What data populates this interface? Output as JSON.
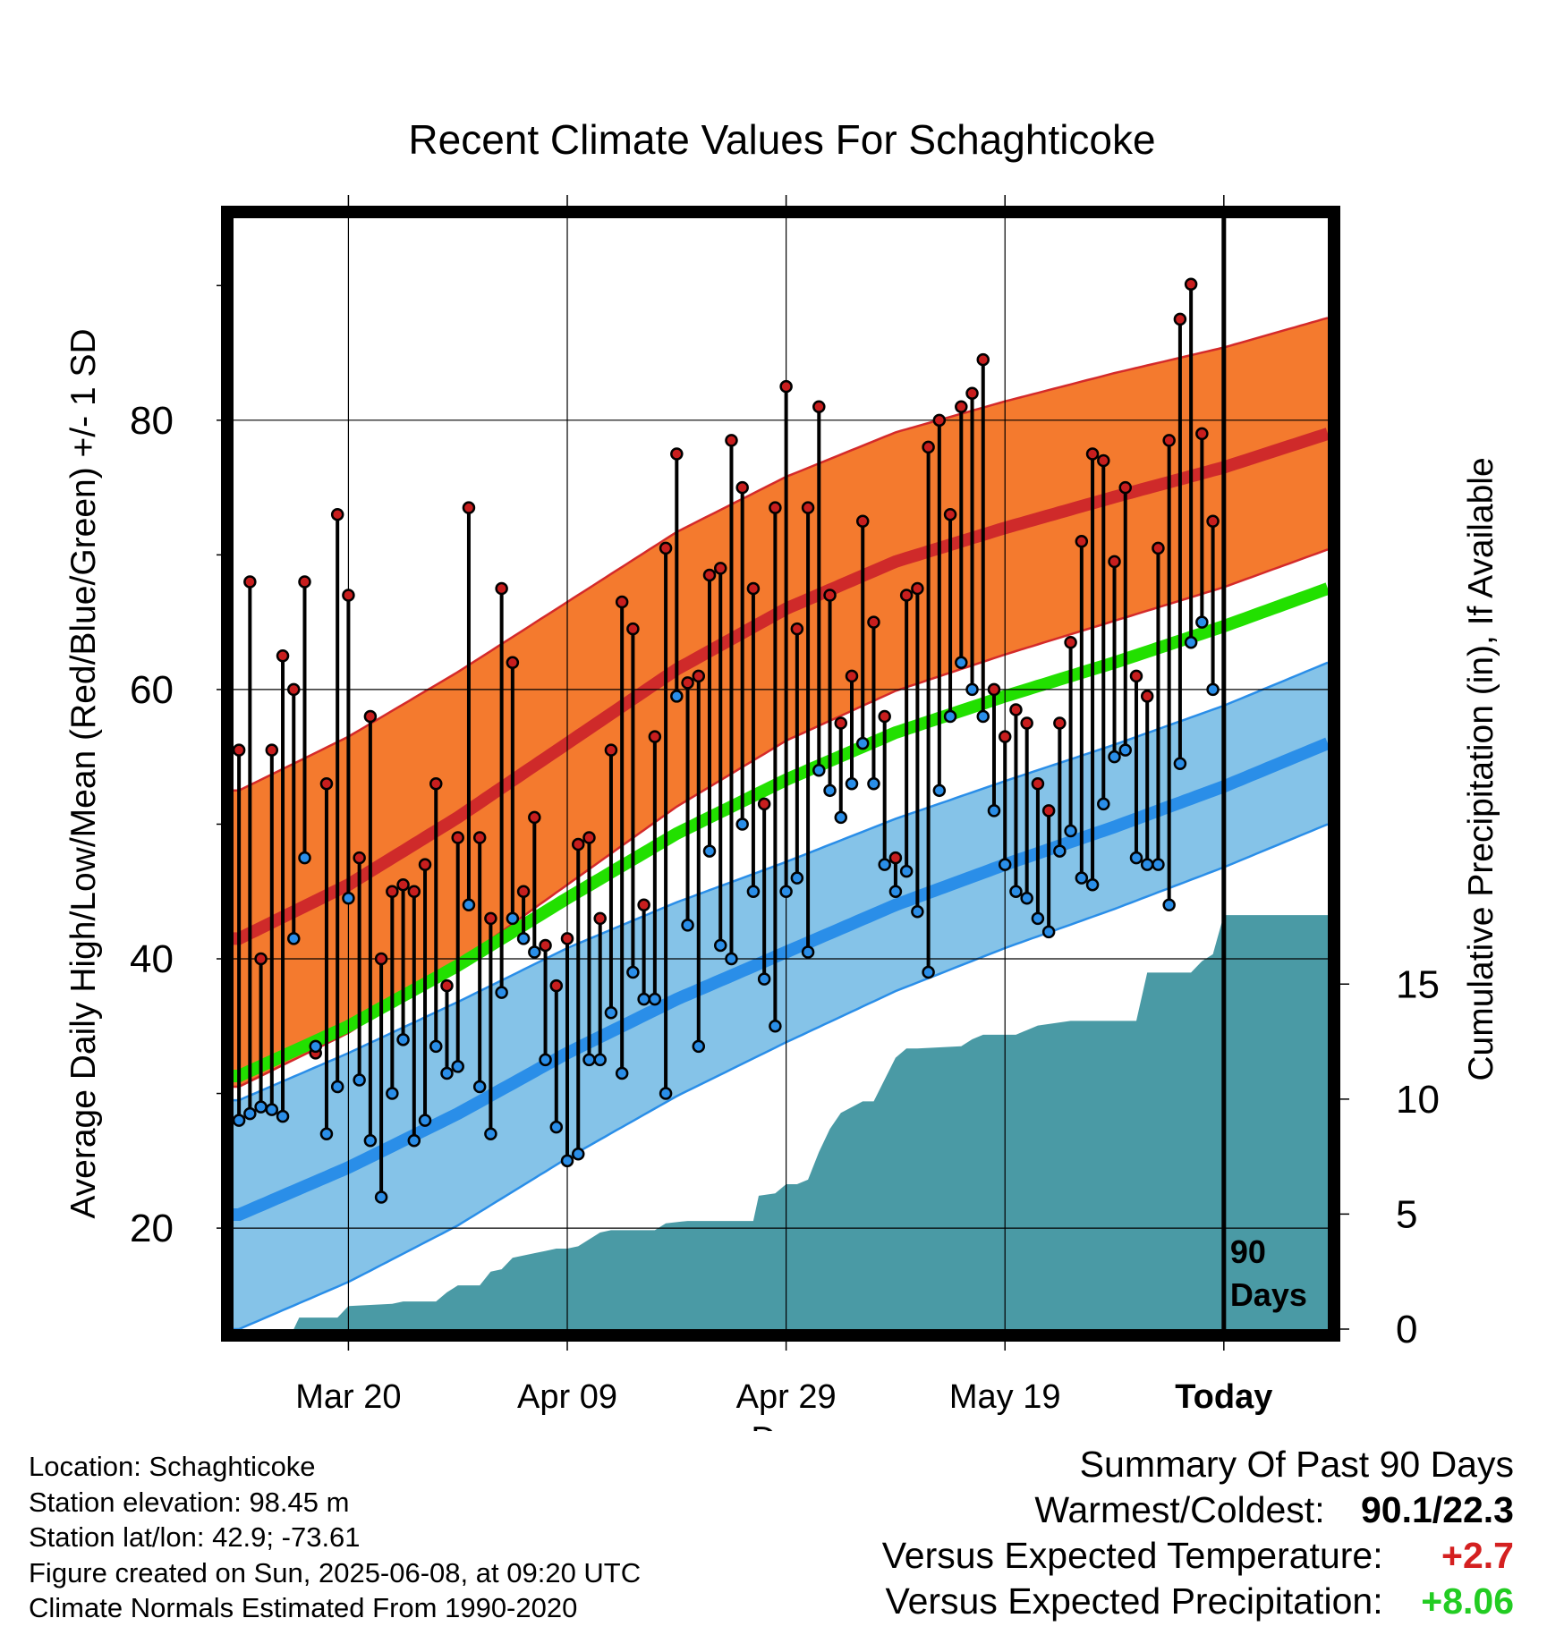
{
  "chart_data": {
    "type": "line",
    "title": "Recent Climate Values For Schaghticoke",
    "xlabel": "Day",
    "ylabel_left": "Average Daily High/Low/Mean (Red/Blue/Green) +/- 1 SD",
    "ylabel_right": "Cumulative Precipitation (in), If Available",
    "x_tick_labels": [
      "Mar 20",
      "Apr 09",
      "Apr 29",
      "May 19",
      "Today"
    ],
    "x_tick_days": [
      10,
      30,
      50,
      70,
      90
    ],
    "xlim": [
      -0.5,
      99.5
    ],
    "ylim_left": [
      12.5,
      95
    ],
    "yticks_left": [
      20,
      40,
      60,
      80
    ],
    "ylim_right": [
      0,
      48.3
    ],
    "yticks_right": [
      0,
      5,
      10,
      15
    ],
    "today_marker": {
      "day": 90,
      "label_line1": "90",
      "label_line2": "Days"
    },
    "normals": {
      "days": [
        0,
        10,
        20,
        30,
        40,
        50,
        60,
        70,
        80,
        90,
        99.5
      ],
      "high_mean": [
        41.5,
        45.5,
        50.5,
        56,
        61.5,
        66,
        69.5,
        72,
        74.3,
        76.5,
        79
      ],
      "high_sd": [
        11,
        11,
        10.8,
        10.5,
        10.2,
        9.8,
        9.6,
        9.4,
        9.2,
        8.9,
        8.6
      ],
      "low_mean": [
        21,
        24.5,
        28.5,
        33,
        37,
        40.5,
        44,
        47,
        49.8,
        52.8,
        56
      ],
      "low_sd": [
        8.5,
        8.5,
        8.3,
        7.8,
        7.2,
        6.7,
        6.4,
        6.2,
        6.1,
        6.0,
        6.0
      ],
      "mean": [
        31.3,
        35,
        39.5,
        44.5,
        49.3,
        53.3,
        56.8,
        59.5,
        62,
        64.7,
        67.5
      ]
    },
    "series": [
      {
        "name": "High",
        "color": "#c81e1e",
        "values": [
          55.5,
          68,
          40,
          55.5,
          62.5,
          60,
          68,
          33,
          53,
          73,
          67,
          47.5,
          58,
          40,
          45,
          45.5,
          45,
          47,
          53,
          38,
          49,
          73.5,
          49,
          43,
          67.5,
          62,
          45,
          50.5,
          41,
          38,
          41.5,
          48.5,
          49,
          43,
          55.5,
          66.5,
          64.5,
          44,
          56.5,
          70.5,
          77.5,
          60.5,
          61,
          68.5,
          69,
          78.5,
          75,
          67.5,
          51.5,
          73.5,
          82.5,
          64.5,
          73.5,
          81,
          67,
          57.5,
          61,
          72.5,
          65,
          58,
          47.5,
          67,
          67.5,
          78,
          80,
          73,
          81,
          82,
          84.5,
          60,
          56.5,
          58.5,
          57.5,
          53,
          51,
          57.5,
          63.5,
          71,
          77.5,
          77,
          69.5,
          75,
          61,
          59.5,
          70.5,
          78.5,
          87.5,
          90.1,
          79,
          72.5
        ]
      },
      {
        "name": "Low",
        "color": "#2a8ee8",
        "values": [
          28,
          28.5,
          29,
          28.8,
          28.3,
          41.5,
          47.5,
          33.5,
          27,
          30.5,
          44.5,
          31,
          26.5,
          22.3,
          30,
          34,
          26.5,
          28,
          33.5,
          31.5,
          32,
          44,
          30.5,
          27,
          37.5,
          43,
          41.5,
          40.5,
          32.5,
          27.5,
          25,
          25.5,
          32.5,
          32.5,
          36,
          31.5,
          39,
          37,
          37,
          30,
          59.5,
          42.5,
          33.5,
          48,
          41,
          40,
          50,
          45,
          38.5,
          35,
          45,
          46,
          40.5,
          54,
          52.5,
          50.5,
          53,
          56,
          53,
          47,
          45,
          46.5,
          43.5,
          39,
          52.5,
          58,
          62,
          60,
          58,
          51,
          47,
          45,
          44.5,
          43,
          42,
          48,
          49.5,
          46,
          45.5,
          51.5,
          55,
          55.5,
          47.5,
          47,
          47,
          44,
          54.5,
          63.5,
          65,
          60
        ]
      },
      {
        "name": "Cumulative Precipitation",
        "color": "#4a9aa5",
        "days": [
          -0.5,
          5,
          5.5,
          9,
          10,
          14,
          15,
          18,
          19,
          20,
          22,
          23,
          24,
          25,
          27,
          28,
          29,
          30,
          31,
          33,
          34,
          38,
          39,
          41,
          47,
          47.5,
          49,
          50,
          51,
          52,
          53,
          54,
          55,
          57,
          58,
          60,
          61,
          62,
          66,
          67,
          68,
          71,
          72,
          73,
          76,
          78,
          79,
          82,
          83,
          84,
          87,
          88,
          89,
          90,
          99.5
        ],
        "values": [
          0,
          0,
          0.5,
          0.5,
          1,
          1.1,
          1.2,
          1.2,
          1.6,
          1.9,
          1.9,
          2.5,
          2.6,
          3.1,
          3.3,
          3.4,
          3.5,
          3.5,
          3.6,
          4.2,
          4.3,
          4.3,
          4.6,
          4.7,
          4.7,
          5.8,
          5.9,
          6.3,
          6.3,
          6.5,
          7.7,
          8.7,
          9.4,
          9.9,
          9.9,
          11.8,
          12.2,
          12.2,
          12.3,
          12.6,
          12.8,
          12.8,
          13.0,
          13.2,
          13.4,
          13.4,
          13.4,
          13.4,
          15.5,
          15.5,
          15.5,
          16.0,
          16.3,
          18.0,
          18.0
        ]
      },
      {
        "name": "Mean Normal",
        "color": "#22e000"
      }
    ]
  },
  "footer": {
    "location": "Location: Schaghticoke",
    "elevation": "Station elevation: 98.45 m",
    "latlon": "Station lat/lon: 42.9; -73.61",
    "created": "Figure created on Sun, 2025-06-08, at 09:20 UTC",
    "normals": "Climate Normals Estimated From 1990-2020"
  },
  "summary": {
    "title": "Summary Of Past 90 Days",
    "warm_cold_label": "Warmest/Coldest:",
    "warm_cold_value": "90.1/22.3",
    "temp_label": "Versus Expected Temperature:",
    "temp_value": "+2.7",
    "precip_label": "Versus Expected Precipitation:",
    "precip_value": "+8.06",
    "temp_color": "#d42020",
    "precip_color": "#22cc22"
  }
}
